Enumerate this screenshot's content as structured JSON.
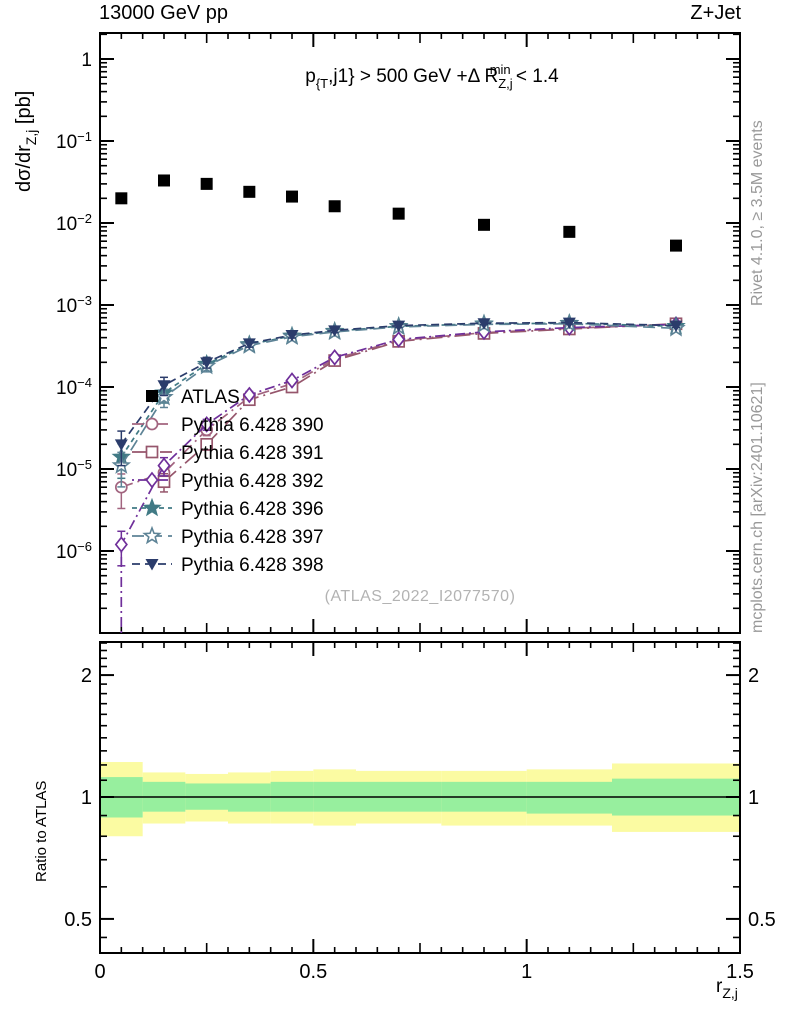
{
  "header": {
    "left_title": "13000 GeV pp",
    "right_title": "Z+Jet"
  },
  "side_notes": {
    "top": "Rivet 4.1.0, ≥ 3.5M events",
    "bottom": "mcplots.cern.ch [arXiv:2401.10621]"
  },
  "watermark": "(ATLAS_2022_I2077570)",
  "colors": {
    "band_yellow": "#fbfba2",
    "band_green": "#97ef9e",
    "frame": "#000000",
    "side_note_gray": "#999999",
    "watermark_gray": "#b3b3b3"
  },
  "chart_data": {
    "type": "line",
    "annotation": "p_{T,j1} > 500 GeV +Δ R_Z,j^min < 1.4",
    "annotation_parts": [
      {
        "t": "p",
        "s": "n"
      },
      {
        "t": "{T",
        "s": "sub"
      },
      {
        "t": ",j1} > 500 GeV +Δ R",
        "s": "n"
      },
      {
        "t": "Z,j",
        "s": "sub"
      },
      {
        "t": "min",
        "s": "sup-over"
      },
      {
        "t": " < 1.4",
        "s": "n"
      }
    ],
    "xlabel": "r_Z,j",
    "xlabel_parts": [
      {
        "t": "r",
        "s": "n"
      },
      {
        "t": "Z,j",
        "s": "sub"
      }
    ],
    "ylabel": "dσ/dr_Z,j [pb]",
    "ylabel_parts": [
      {
        "t": "dσ/dr",
        "s": "n"
      },
      {
        "t": "Z,j",
        "s": "sub"
      },
      {
        "t": " [pb]",
        "s": "n"
      }
    ],
    "yscale": "log",
    "xlim": [
      0,
      1.5
    ],
    "ylim": [
      1e-07,
      2.1
    ],
    "xticks": [
      0,
      0.5,
      1,
      1.5
    ],
    "xtick_labels": [
      "0",
      "0.5",
      "1",
      "1.5"
    ],
    "ytick_decades": [
      0,
      -1,
      -2,
      -3,
      -4,
      -5,
      -6
    ],
    "grid": false,
    "legend_position": "upper-left-inside",
    "x": [
      0.05,
      0.15,
      0.25,
      0.35,
      0.45,
      0.55,
      0.7,
      0.9,
      1.1,
      1.35
    ],
    "bin_edges": [
      0,
      0.1,
      0.2,
      0.3,
      0.4,
      0.5,
      0.6,
      0.8,
      1.0,
      1.2,
      1.5
    ],
    "mc_yerr_rel": [
      0.45,
      0.25,
      0.15,
      0.1,
      0.08,
      0.06,
      0.05,
      0.04,
      0.04,
      0.05
    ],
    "series": [
      {
        "name": "ATLAS",
        "color": "#000000",
        "marker": "square-filled",
        "dash": null,
        "values": [
          0.02,
          0.033,
          0.03,
          0.024,
          0.021,
          0.016,
          0.013,
          0.0095,
          0.0078,
          0.0053
        ]
      },
      {
        "name": "Pythia 6.428 390",
        "color": "#a2647f",
        "marker": "circle-open",
        "dash": "12 5 2 5",
        "values": [
          6e-06,
          9e-06,
          3e-05,
          7.5e-05,
          0.00011,
          0.00022,
          0.00037,
          0.00046,
          0.00052,
          0.00058
        ]
      },
      {
        "name": "Pythia 6.428 391",
        "color": "#96566c",
        "marker": "square-open",
        "dash": "16 5 2 5",
        "values": [
          null,
          7e-06,
          2e-05,
          7e-05,
          0.0001,
          0.00021,
          0.00036,
          0.00045,
          0.00051,
          0.00059
        ]
      },
      {
        "name": "Pythia 6.428 392",
        "color": "#6f2f9a",
        "marker": "diamond-open",
        "dash": "2 4 10 4",
        "entry_drop": true,
        "values": [
          1.2e-06,
          1.1e-05,
          3.5e-05,
          8e-05,
          0.00012,
          0.00023,
          0.00038,
          0.00047,
          0.00053,
          0.00058
        ]
      },
      {
        "name": "Pythia 6.428 396",
        "color": "#417a85",
        "marker": "star-filled",
        "dash": "5 4",
        "values": [
          1.4e-05,
          8.5e-05,
          0.00019,
          0.00033,
          0.00042,
          0.00048,
          0.00055,
          0.00059,
          0.0006,
          0.00055
        ]
      },
      {
        "name": "Pythia 6.428 397",
        "color": "#5d8396",
        "marker": "star-open",
        "dash": "12 6",
        "values": [
          1.1e-05,
          7.5e-05,
          0.00018,
          0.00032,
          0.00041,
          0.00047,
          0.00054,
          0.00058,
          0.00059,
          0.00052
        ]
      },
      {
        "name": "Pythia 6.428 398",
        "color": "#2b3c6b",
        "marker": "triangle-down-filled",
        "dash": "8 5",
        "values": [
          2e-05,
          0.000105,
          0.0002,
          0.00034,
          0.00043,
          0.00049,
          0.00056,
          0.0006,
          0.00061,
          0.00056
        ]
      }
    ],
    "ratio": {
      "ylabel": "Ratio to ATLAS",
      "ylim": [
        0.412,
        2.41
      ],
      "yticks": [
        0.5,
        1,
        2
      ],
      "ytick_labels": [
        "0.5",
        "1",
        "2"
      ],
      "reference_line": 1,
      "bands": {
        "edges": [
          0,
          0.1,
          0.2,
          0.3,
          0.4,
          0.5,
          0.6,
          0.8,
          1.0,
          1.2,
          1.5
        ],
        "yellow_lo": [
          0.8,
          0.86,
          0.87,
          0.86,
          0.86,
          0.85,
          0.86,
          0.85,
          0.85,
          0.82
        ],
        "yellow_hi": [
          1.22,
          1.15,
          1.14,
          1.15,
          1.16,
          1.17,
          1.16,
          1.16,
          1.17,
          1.21
        ],
        "green_lo": [
          0.89,
          0.92,
          0.93,
          0.92,
          0.92,
          0.92,
          0.92,
          0.92,
          0.91,
          0.9
        ],
        "green_hi": [
          1.12,
          1.09,
          1.08,
          1.08,
          1.09,
          1.09,
          1.09,
          1.09,
          1.09,
          1.11
        ]
      }
    }
  }
}
